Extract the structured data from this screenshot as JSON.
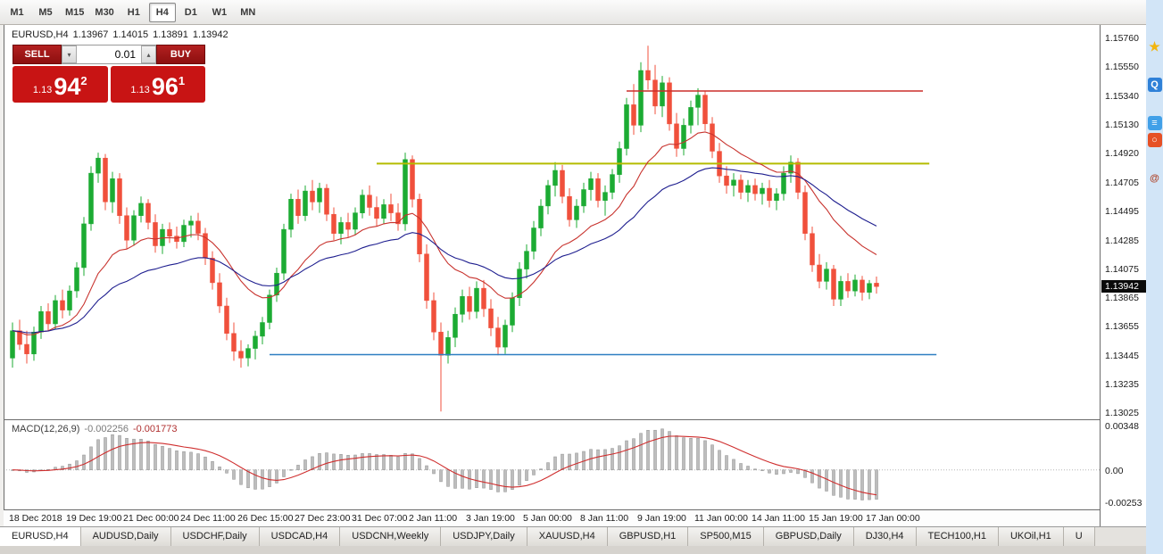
{
  "toolbar": {
    "timeframes": [
      {
        "label": "M1",
        "active": false
      },
      {
        "label": "M5",
        "active": false
      },
      {
        "label": "M15",
        "active": false
      },
      {
        "label": "M30",
        "active": false
      },
      {
        "label": "H1",
        "active": false
      },
      {
        "label": "H4",
        "active": true
      },
      {
        "label": "D1",
        "active": false
      },
      {
        "label": "W1",
        "active": false
      },
      {
        "label": "MN",
        "active": false
      }
    ]
  },
  "chart_header": {
    "symbol_period": "EURUSD,H4",
    "open": "1.13967",
    "high": "1.14015",
    "low": "1.13891",
    "close": "1.13942"
  },
  "trade_panel": {
    "sell_label": "SELL",
    "buy_label": "BUY",
    "volume": "0.01",
    "volume_down_glyph": "▾",
    "volume_up_glyph": "▴",
    "sell_price": {
      "prefix": "1.13",
      "big": "94",
      "sup": "2"
    },
    "buy_price": {
      "prefix": "1.13",
      "big": "96",
      "sup": "1"
    }
  },
  "price_axis": {
    "current_price": "1.13942"
  },
  "macd_panel": {
    "title": "MACD(12,26,9)",
    "main_value": "-0.002256",
    "signal_value": "-0.001773"
  },
  "tabs": [
    {
      "label": "EURUSD,H4",
      "active": true
    },
    {
      "label": "AUDUSD,Daily",
      "active": false
    },
    {
      "label": "USDCHF,Daily",
      "active": false
    },
    {
      "label": "USDCAD,H4",
      "active": false
    },
    {
      "label": "USDCNH,Weekly",
      "active": false
    },
    {
      "label": "USDJPY,Daily",
      "active": false
    },
    {
      "label": "XAUUSD,H4",
      "active": false
    },
    {
      "label": "GBPUSD,H1",
      "active": false
    },
    {
      "label": "SP500,M15",
      "active": false
    },
    {
      "label": "GBPUSD,Daily",
      "active": false
    },
    {
      "label": "DJ30,H4",
      "active": false
    },
    {
      "label": "TECH100,H1",
      "active": false
    },
    {
      "label": "UKOil,H1",
      "active": false
    },
    {
      "label": "U",
      "active": false
    }
  ],
  "sidebar_icons": [
    {
      "name": "favorites-star-icon",
      "glyph": "★",
      "fg": "#f2b50f",
      "bg": "transparent"
    },
    {
      "name": "qq-app-icon",
      "glyph": "Q",
      "fg": "#ffffff",
      "bg": "#2f81d8"
    },
    {
      "name": "list-app-icon",
      "glyph": "≡",
      "fg": "#ffffff",
      "bg": "#41a0e8"
    },
    {
      "name": "browser-app-icon",
      "glyph": "○",
      "fg": "#ffffff",
      "bg": "#e65126"
    },
    {
      "name": "mail-at-icon",
      "glyph": "@",
      "fg": "#b0452a",
      "bg": "transparent"
    }
  ],
  "colors": {
    "trade_button_red": "#c81414",
    "badge_bg": "#0a0a0a"
  },
  "chart_data": {
    "type": "candlestick",
    "symbol": "EURUSD",
    "period": "H4",
    "price_range": [
      1.15852,
      1.12973
    ],
    "y_axis": {
      "labels": [
        "1.15760",
        "1.15550",
        "1.15340",
        "1.15130",
        "1.14920",
        "1.14705",
        "1.14495",
        "1.14285",
        "1.14075",
        "1.13865",
        "1.13655",
        "1.13445",
        "1.13235",
        "1.13025"
      ]
    },
    "x_axis": {
      "every": 8,
      "labels": [
        "18 Dec 2018",
        "19 Dec 19:00",
        "21 Dec 00:00",
        "24 Dec 11:00",
        "26 Dec 15:00",
        "27 Dec 23:00",
        "31 Dec 07:00",
        "2 Jan 11:00",
        "3 Jan 19:00",
        "5 Jan 00:00",
        "8 Jan 11:00",
        "9 Jan 19:00",
        "11 Jan 00:00",
        "14 Jan 11:00",
        "15 Jan 19:00",
        "17 Jan 00:00"
      ]
    },
    "colors": {
      "up": "#1cab33",
      "down": "#f0503c"
    },
    "moving_averages": [
      {
        "name": "ma-fast",
        "type": "ema",
        "period": 16,
        "color": "#c8332e"
      },
      {
        "name": "ma-slow",
        "type": "ema",
        "period": 34,
        "color": "#1e1e8f"
      }
    ],
    "hlines": [
      {
        "price": 1.1537,
        "from": 86,
        "to": 127.5,
        "color": "#cc2e2a",
        "width": 1.6
      },
      {
        "price": 1.1484,
        "from": 51,
        "to": 128.4,
        "color": "#b4bc00",
        "width": 2
      },
      {
        "price": 1.13445,
        "from": 36,
        "to": 129.4,
        "color": "#2e7fc1",
        "width": 1.6
      }
    ],
    "macd": {
      "fast": 12,
      "slow": 26,
      "signal": 9,
      "range": [
        0.0039,
        -0.0031
      ],
      "axis_labels": [
        "0.00348",
        "0.00",
        "-0.00253"
      ],
      "histogram_color": "#bdbdbd",
      "histogram_stroke": "#8f8f8f",
      "signal_color": "#cf2e2e",
      "zero_color": "#b5b5b5"
    },
    "candles": [
      [
        1.1342,
        1.1368,
        1.1335,
        1.1362
      ],
      [
        1.1362,
        1.137,
        1.1348,
        1.1352
      ],
      [
        1.1352,
        1.1362,
        1.1338,
        1.1345
      ],
      [
        1.1345,
        1.1365,
        1.134,
        1.1361
      ],
      [
        1.1361,
        1.138,
        1.1356,
        1.1376
      ],
      [
        1.1376,
        1.1382,
        1.1362,
        1.1367
      ],
      [
        1.1367,
        1.1388,
        1.1363,
        1.1384
      ],
      [
        1.1384,
        1.1392,
        1.1371,
        1.1377
      ],
      [
        1.1377,
        1.1395,
        1.1373,
        1.1391
      ],
      [
        1.1391,
        1.1412,
        1.1386,
        1.1408
      ],
      [
        1.1408,
        1.1445,
        1.1402,
        1.144
      ],
      [
        1.144,
        1.1482,
        1.1435,
        1.1477
      ],
      [
        1.1477,
        1.1492,
        1.147,
        1.1488
      ],
      [
        1.1488,
        1.1491,
        1.145,
        1.1456
      ],
      [
        1.1456,
        1.1478,
        1.1448,
        1.1473
      ],
      [
        1.1473,
        1.1477,
        1.144,
        1.1446
      ],
      [
        1.1446,
        1.1452,
        1.1422,
        1.1428
      ],
      [
        1.1428,
        1.145,
        1.1424,
        1.1446
      ],
      [
        1.1446,
        1.146,
        1.1441,
        1.1455
      ],
      [
        1.1455,
        1.1458,
        1.1436,
        1.1441
      ],
      [
        1.1441,
        1.1447,
        1.1419,
        1.1424
      ],
      [
        1.1424,
        1.144,
        1.1418,
        1.1436
      ],
      [
        1.1436,
        1.1441,
        1.1426,
        1.1431
      ],
      [
        1.1431,
        1.1438,
        1.1422,
        1.1427
      ],
      [
        1.1427,
        1.1443,
        1.1423,
        1.1439
      ],
      [
        1.1439,
        1.1446,
        1.143,
        1.1442
      ],
      [
        1.1442,
        1.1448,
        1.1428,
        1.1433
      ],
      [
        1.1433,
        1.1437,
        1.141,
        1.1415
      ],
      [
        1.1415,
        1.142,
        1.1392,
        1.1397
      ],
      [
        1.1397,
        1.1404,
        1.1375,
        1.138
      ],
      [
        1.138,
        1.1386,
        1.1355,
        1.136
      ],
      [
        1.136,
        1.1368,
        1.134,
        1.1347
      ],
      [
        1.1347,
        1.1355,
        1.1335,
        1.1342
      ],
      [
        1.1342,
        1.1352,
        1.1336,
        1.1349
      ],
      [
        1.1349,
        1.1362,
        1.1341,
        1.1358
      ],
      [
        1.1358,
        1.1372,
        1.1352,
        1.1368
      ],
      [
        1.1368,
        1.1392,
        1.1363,
        1.1388
      ],
      [
        1.1388,
        1.1408,
        1.1383,
        1.1404
      ],
      [
        1.1404,
        1.144,
        1.1399,
        1.1436
      ],
      [
        1.1436,
        1.1462,
        1.143,
        1.1458
      ],
      [
        1.1458,
        1.1465,
        1.144,
        1.1446
      ],
      [
        1.1446,
        1.1468,
        1.1442,
        1.1464
      ],
      [
        1.1464,
        1.1472,
        1.145,
        1.1456
      ],
      [
        1.1456,
        1.147,
        1.1448,
        1.1466
      ],
      [
        1.1466,
        1.1469,
        1.1442,
        1.1447
      ],
      [
        1.1447,
        1.1452,
        1.1428,
        1.1433
      ],
      [
        1.1433,
        1.1445,
        1.1425,
        1.1441
      ],
      [
        1.1441,
        1.1448,
        1.143,
        1.1436
      ],
      [
        1.1436,
        1.1452,
        1.1432,
        1.1448
      ],
      [
        1.1448,
        1.1465,
        1.1444,
        1.1461
      ],
      [
        1.1461,
        1.1468,
        1.1446,
        1.1452
      ],
      [
        1.1452,
        1.146,
        1.1438,
        1.1444
      ],
      [
        1.1444,
        1.1458,
        1.144,
        1.1454
      ],
      [
        1.1454,
        1.1462,
        1.1442,
        1.1448
      ],
      [
        1.1448,
        1.1455,
        1.1435,
        1.144
      ],
      [
        1.144,
        1.1492,
        1.1435,
        1.1487
      ],
      [
        1.1487,
        1.149,
        1.1452,
        1.1458
      ],
      [
        1.1458,
        1.1462,
        1.1412,
        1.1418
      ],
      [
        1.1418,
        1.1425,
        1.1378,
        1.1384
      ],
      [
        1.1384,
        1.139,
        1.1355,
        1.1361
      ],
      [
        1.1361,
        1.1368,
        1.1303,
        1.1344
      ],
      [
        1.1344,
        1.1362,
        1.1338,
        1.1357
      ],
      [
        1.1357,
        1.1379,
        1.135,
        1.1374
      ],
      [
        1.1374,
        1.1392,
        1.1368,
        1.1387
      ],
      [
        1.1387,
        1.1394,
        1.137,
        1.1376
      ],
      [
        1.1376,
        1.1398,
        1.1371,
        1.1393
      ],
      [
        1.1393,
        1.1399,
        1.1372,
        1.1378
      ],
      [
        1.1378,
        1.1385,
        1.1358,
        1.1364
      ],
      [
        1.1364,
        1.1372,
        1.1344,
        1.135
      ],
      [
        1.135,
        1.137,
        1.1345,
        1.1366
      ],
      [
        1.1366,
        1.139,
        1.1361,
        1.1386
      ],
      [
        1.1386,
        1.1412,
        1.138,
        1.1407
      ],
      [
        1.1407,
        1.1425,
        1.14,
        1.142
      ],
      [
        1.142,
        1.1442,
        1.1414,
        1.1437
      ],
      [
        1.1437,
        1.1458,
        1.1431,
        1.1453
      ],
      [
        1.1453,
        1.1472,
        1.1447,
        1.1468
      ],
      [
        1.1468,
        1.1485,
        1.146,
        1.1479
      ],
      [
        1.1479,
        1.1483,
        1.1455,
        1.146
      ],
      [
        1.146,
        1.1466,
        1.1438,
        1.1443
      ],
      [
        1.1443,
        1.1458,
        1.1437,
        1.1453
      ],
      [
        1.1453,
        1.147,
        1.1448,
        1.1465
      ],
      [
        1.1465,
        1.1478,
        1.1457,
        1.1473
      ],
      [
        1.1473,
        1.1477,
        1.1452,
        1.1457
      ],
      [
        1.1457,
        1.1468,
        1.1446,
        1.1463
      ],
      [
        1.1463,
        1.148,
        1.1458,
        1.1476
      ],
      [
        1.1476,
        1.15,
        1.147,
        1.1495
      ],
      [
        1.1495,
        1.1532,
        1.149,
        1.1527
      ],
      [
        1.1527,
        1.1542,
        1.1505,
        1.1512
      ],
      [
        1.1512,
        1.1558,
        1.1507,
        1.1552
      ],
      [
        1.1552,
        1.157,
        1.1538,
        1.1545
      ],
      [
        1.1545,
        1.1556,
        1.152,
        1.1526
      ],
      [
        1.1526,
        1.1548,
        1.1518,
        1.1543
      ],
      [
        1.1543,
        1.1547,
        1.1508,
        1.1513
      ],
      [
        1.1513,
        1.1521,
        1.1489,
        1.1495
      ],
      [
        1.1495,
        1.1517,
        1.149,
        1.1512
      ],
      [
        1.1512,
        1.153,
        1.1506,
        1.1525
      ],
      [
        1.1525,
        1.1539,
        1.1512,
        1.1534
      ],
      [
        1.1534,
        1.1537,
        1.1508,
        1.1513
      ],
      [
        1.1513,
        1.1518,
        1.1488,
        1.1493
      ],
      [
        1.1493,
        1.1499,
        1.147,
        1.1475
      ],
      [
        1.1475,
        1.1482,
        1.1462,
        1.1468
      ],
      [
        1.1468,
        1.1477,
        1.146,
        1.1472
      ],
      [
        1.1472,
        1.1476,
        1.1458,
        1.1463
      ],
      [
        1.1463,
        1.1472,
        1.1456,
        1.1468
      ],
      [
        1.1468,
        1.1473,
        1.1457,
        1.1462
      ],
      [
        1.1462,
        1.147,
        1.1454,
        1.1466
      ],
      [
        1.1466,
        1.1472,
        1.1452,
        1.1457
      ],
      [
        1.1457,
        1.1466,
        1.145,
        1.1462
      ],
      [
        1.1462,
        1.1482,
        1.1457,
        1.1477
      ],
      [
        1.1477,
        1.149,
        1.147,
        1.1485
      ],
      [
        1.1485,
        1.1488,
        1.1458,
        1.1463
      ],
      [
        1.1463,
        1.1468,
        1.1428,
        1.1433
      ],
      [
        1.1433,
        1.1438,
        1.1405,
        1.141
      ],
      [
        1.141,
        1.1418,
        1.1393,
        1.1398
      ],
      [
        1.1398,
        1.1412,
        1.1392,
        1.1407
      ],
      [
        1.1407,
        1.141,
        1.138,
        1.1385
      ],
      [
        1.1385,
        1.1402,
        1.138,
        1.1398
      ],
      [
        1.1398,
        1.1404,
        1.1386,
        1.1391
      ],
      [
        1.1391,
        1.1403,
        1.1387,
        1.1399
      ],
      [
        1.1399,
        1.1402,
        1.1384,
        1.139
      ],
      [
        1.139,
        1.1399,
        1.1385,
        1.13965
      ],
      [
        1.13967,
        1.14015,
        1.13891,
        1.13942
      ]
    ]
  }
}
